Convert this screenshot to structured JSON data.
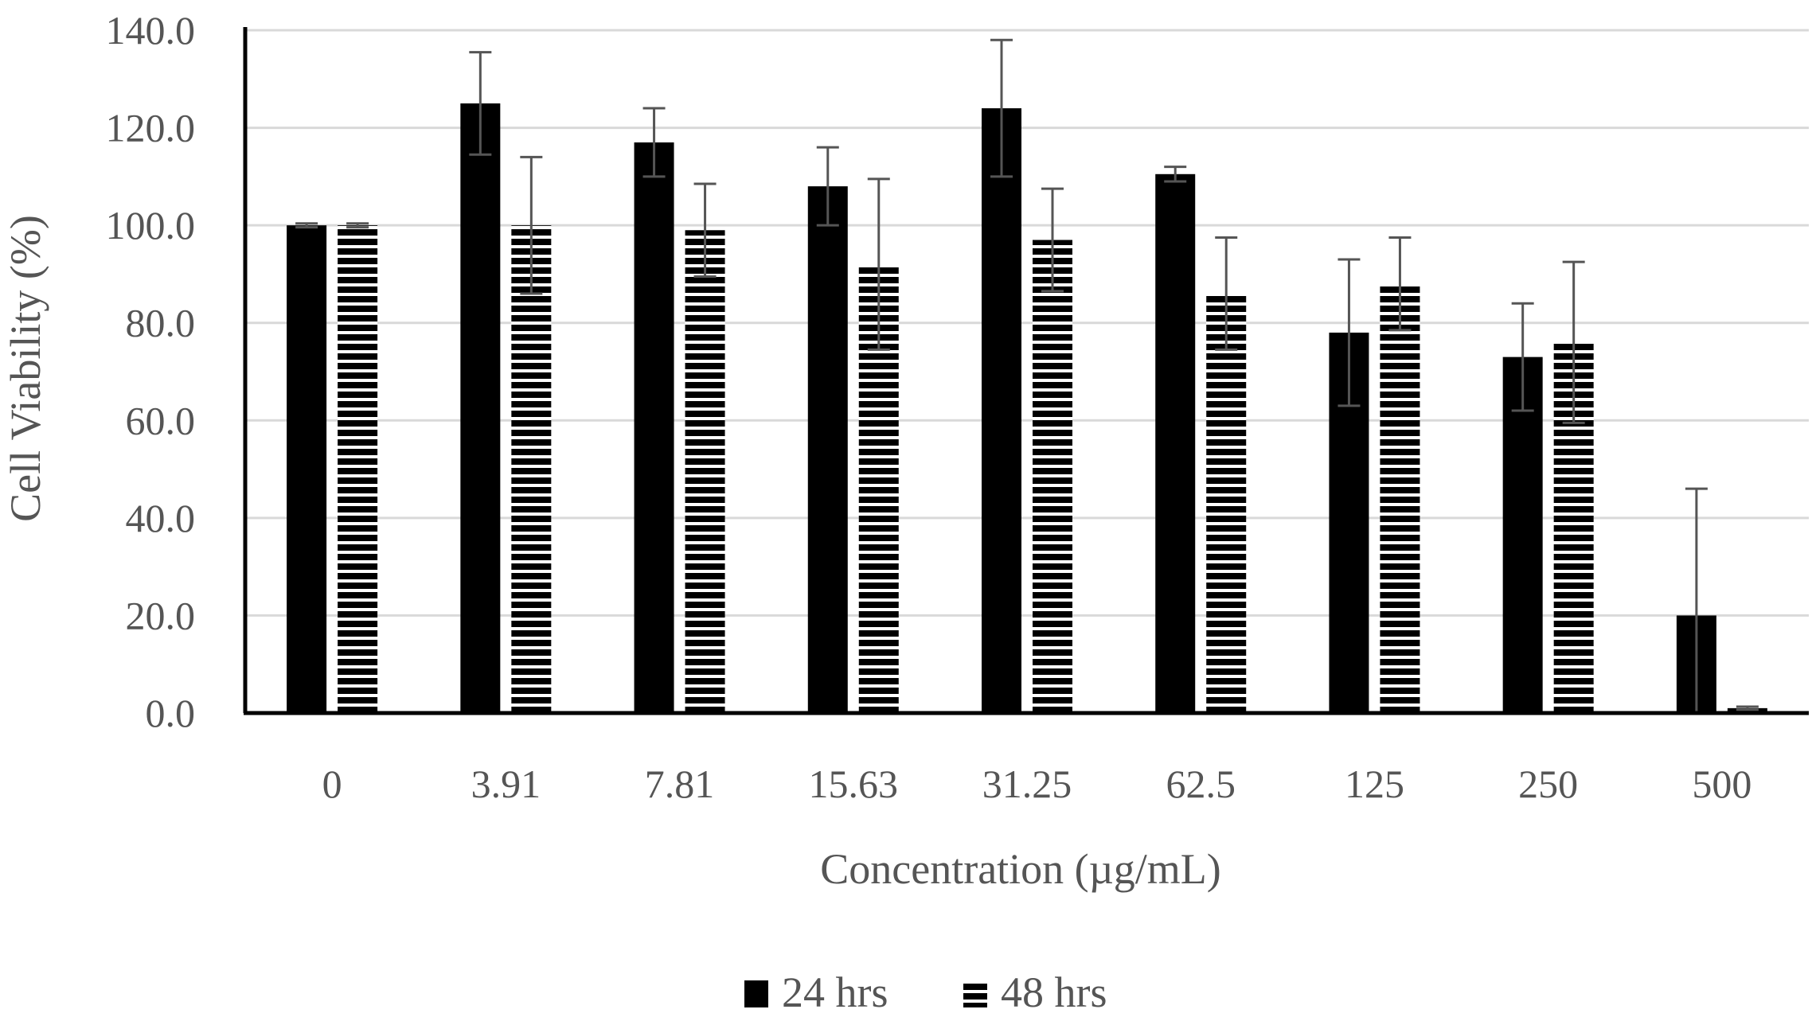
{
  "chart_data": {
    "type": "bar",
    "title": "",
    "xlabel": "Concentration  (µg/mL)",
    "ylabel": "Cell Viability (%)",
    "ylim": [
      0,
      140
    ],
    "yticks": [
      "0.0",
      "20.0",
      "40.0",
      "60.0",
      "80.0",
      "100.0",
      "120.0",
      "140.0"
    ],
    "grid": "horizontal",
    "legend_position": "bottom",
    "categories": [
      "0",
      "3.91",
      "7.81",
      "15.63",
      "31.25",
      "62.5",
      "125",
      "250",
      "500"
    ],
    "series": [
      {
        "name": "24 hrs",
        "pattern": "solid",
        "color": "#000000",
        "values": [
          100.0,
          125.0,
          117.0,
          108.0,
          124.0,
          110.5,
          78.0,
          73.0,
          20.0
        ],
        "errors": [
          0.4,
          10.5,
          7.0,
          8.0,
          14.0,
          1.5,
          15.0,
          11.0,
          26.0
        ]
      },
      {
        "name": "48 hrs",
        "pattern": "horizontal-stripes",
        "color": "#000000",
        "values": [
          100.0,
          100.0,
          99.0,
          92.0,
          97.0,
          86.0,
          88.0,
          76.0,
          1.0
        ],
        "errors": [
          0.4,
          14.0,
          9.5,
          17.5,
          10.5,
          11.5,
          9.5,
          16.5,
          0.3
        ]
      }
    ],
    "colors": {
      "gridline": "#d9d9d9",
      "axis": "#000000",
      "errorbar": "#555555",
      "text": "#555555"
    }
  }
}
